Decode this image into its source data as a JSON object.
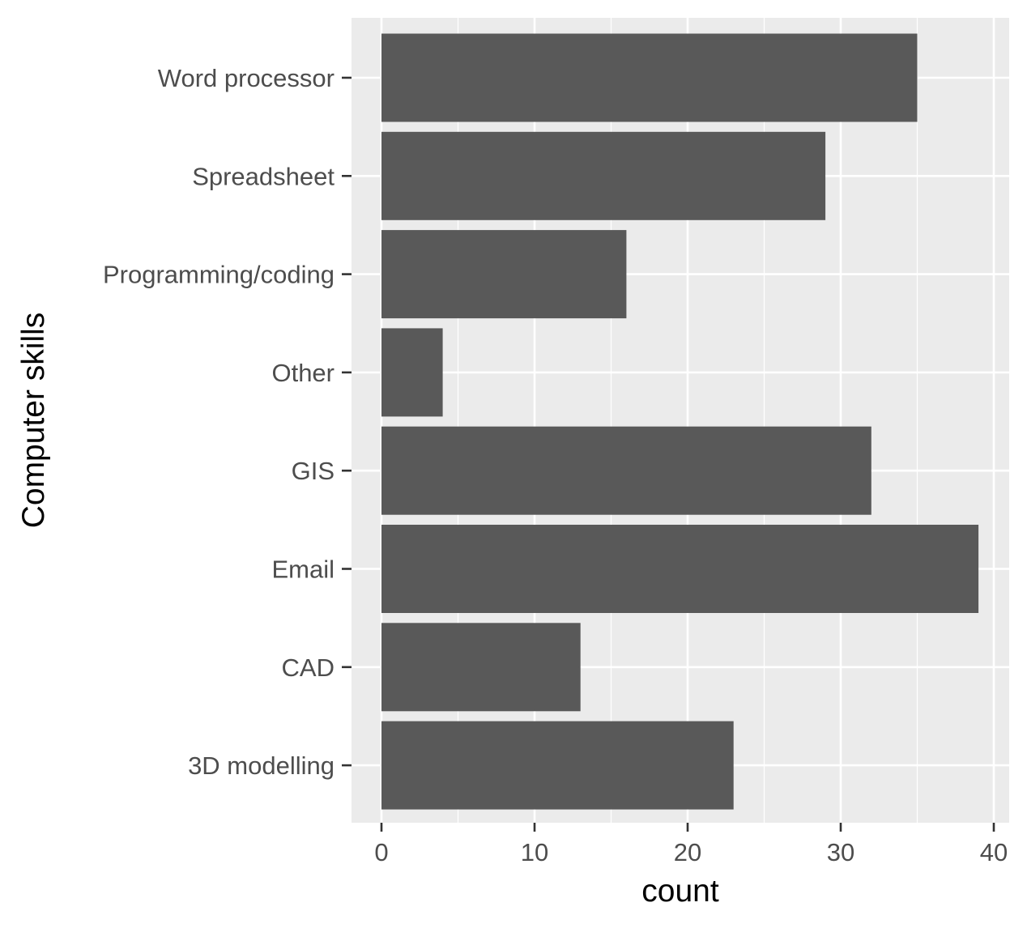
{
  "chart_data": {
    "type": "bar",
    "orientation": "horizontal",
    "categories": [
      "Word processor",
      "Spreadsheet",
      "Programming/coding",
      "Other",
      "GIS",
      "Email",
      "CAD",
      "3D modelling"
    ],
    "values": [
      35,
      29,
      16,
      4,
      32,
      39,
      13,
      23
    ],
    "xlabel": "count",
    "ylabel": "Computer skills",
    "xlim": [
      0,
      41
    ],
    "x_ticks": [
      0,
      10,
      20,
      30,
      40
    ],
    "x_tick_labels": [
      "0",
      "10",
      "20",
      "30",
      "40"
    ],
    "grid": true,
    "legend": "none",
    "colors": {
      "bar": "#595959",
      "panel": "#ebebeb",
      "grid": "#ffffff",
      "tick_text": "#4d4d4d",
      "tick_mark": "#333333",
      "axis_title": "#000000"
    }
  }
}
